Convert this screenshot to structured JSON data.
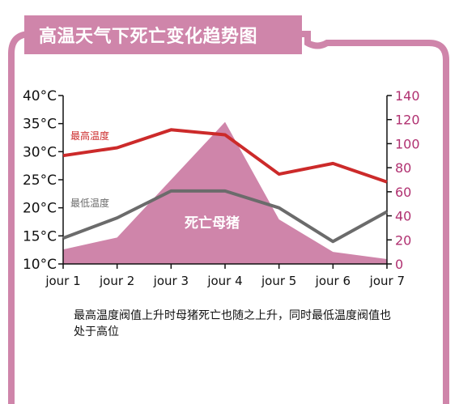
{
  "title": "高温天气下死亡变化趋势图",
  "caption": "最高温度阀值上升时母猪死亡也随之上升，同时最低温度阀值也处于高位",
  "colors": {
    "accent": "#cf85aa",
    "max_temp": "#cc2a2a",
    "min_temp": "#6b6b6b",
    "right_axis": "#b03070",
    "area": "#cf85aa"
  },
  "chart_data": {
    "type": "line",
    "categories": [
      "jour 1",
      "jour 2",
      "jour 3",
      "jour 4",
      "jour 5",
      "jour 6",
      "jour 7"
    ],
    "left_axis": {
      "ylim": [
        10,
        40
      ],
      "ticks": [
        "10°C",
        "15°C",
        "20°C",
        "25°C",
        "30°C",
        "35°C",
        "40°C"
      ]
    },
    "right_axis": {
      "ylim": [
        0,
        140
      ],
      "ticks": [
        "0",
        "20",
        "40",
        "60",
        "80",
        "100",
        "120",
        "140"
      ]
    },
    "series": [
      {
        "name": "最高温度",
        "axis": "left",
        "color": "#cc2a2a",
        "values": [
          29.3,
          30.7,
          33.9,
          33.0,
          26.0,
          27.9,
          24.6
        ]
      },
      {
        "name": "最低温度",
        "axis": "left",
        "color": "#6b6b6b",
        "values": [
          14.6,
          18.2,
          23.0,
          23.0,
          20.0,
          14.0,
          19.3
        ]
      },
      {
        "name": "死亡母猪",
        "axis": "right",
        "type": "area",
        "color": "#cf85aa",
        "x": [
          1,
          2,
          4,
          5,
          6,
          7
        ],
        "values": [
          12,
          22,
          118,
          37,
          10,
          4
        ]
      }
    ]
  }
}
